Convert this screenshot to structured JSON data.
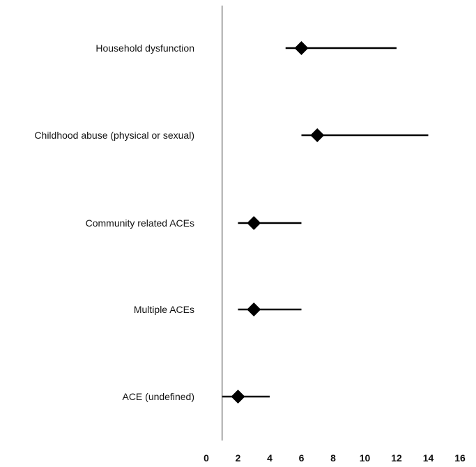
{
  "chart_data": {
    "type": "forest",
    "title": "",
    "xlabel": "",
    "ylabel": "",
    "x_range": [
      0,
      16
    ],
    "x_ticks": [
      "0",
      "2",
      "4",
      "6",
      "8",
      "10",
      "12",
      "14",
      "16"
    ],
    "reference_line": 1,
    "grid": false,
    "colors": {
      "marker": "#000000",
      "line": "#000000",
      "reference": "#aaaaaa"
    },
    "categories": [
      "Household dysfunction",
      "Childhood abuse (physical or sexual)",
      "Community related ACEs",
      "Multiple ACEs",
      "ACE (undefined)"
    ],
    "points": [
      {
        "label": "Household dysfunction",
        "estimate": 6,
        "lower": 5,
        "upper": 12
      },
      {
        "label": "Childhood abuse (physical or sexual)",
        "estimate": 7,
        "lower": 6,
        "upper": 14
      },
      {
        "label": "Community related ACEs",
        "estimate": 3,
        "lower": 2,
        "upper": 6
      },
      {
        "label": "Multiple ACEs",
        "estimate": 3,
        "lower": 2,
        "upper": 6
      },
      {
        "label": "ACE (undefined)",
        "estimate": 2,
        "lower": 1,
        "upper": 4
      }
    ]
  }
}
